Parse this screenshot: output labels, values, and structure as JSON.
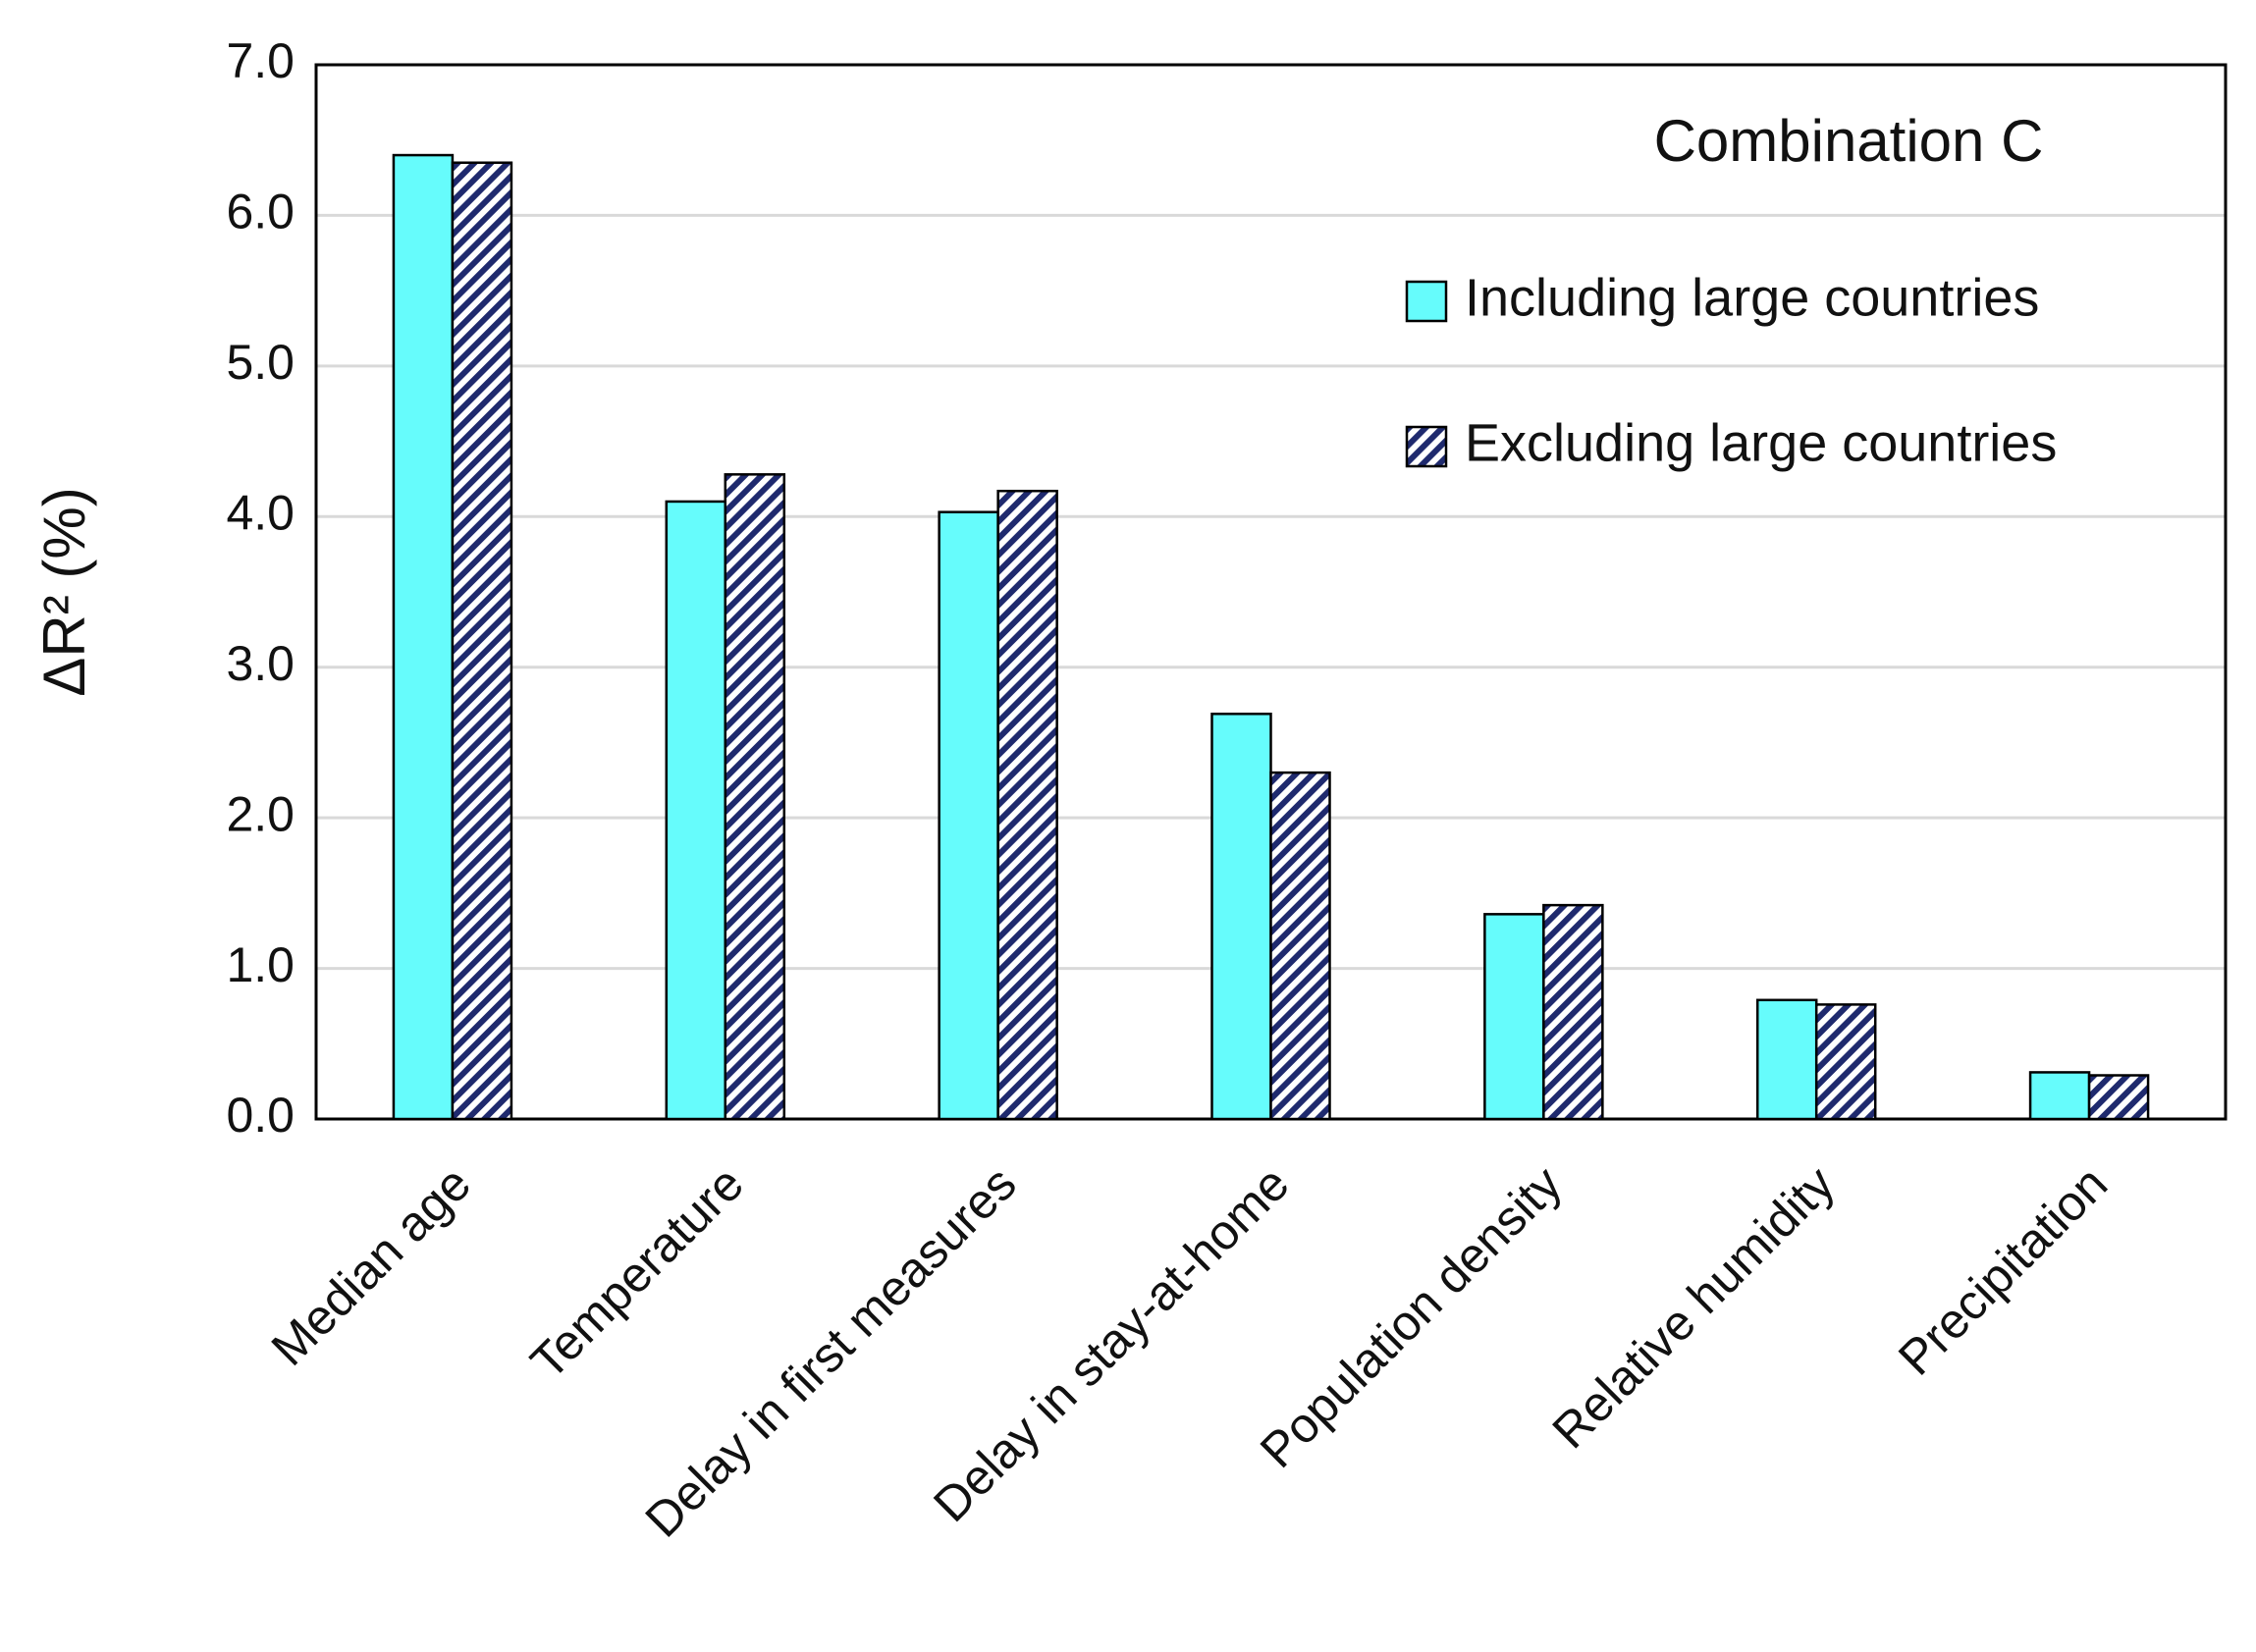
{
  "chart_data": {
    "type": "bar",
    "title": "Combination C",
    "y_label": "ΔR² (%)",
    "categories": [
      "Median age",
      "Temperature",
      "Delay in first measures",
      "Delay in stay-at-home",
      "Population density",
      "Relative humidity",
      "Precipitation"
    ],
    "series": [
      {
        "name": "Including large countries",
        "color": "#66fcfc",
        "pattern": "solid",
        "values": [
          6.4,
          4.1,
          4.03,
          2.69,
          1.36,
          0.79,
          0.31
        ]
      },
      {
        "name": "Excluding large countries",
        "color": "#1f2a6e",
        "pattern": "hatch",
        "values": [
          6.35,
          4.28,
          4.17,
          2.3,
          1.42,
          0.76,
          0.29
        ]
      }
    ],
    "ylim": [
      0,
      7
    ],
    "yticks": [
      {
        "value": 0,
        "label": "0.0"
      },
      {
        "value": 1,
        "label": "1.0"
      },
      {
        "value": 2,
        "label": "2.0"
      },
      {
        "value": 3,
        "label": "3.0"
      },
      {
        "value": 4,
        "label": "4.0"
      },
      {
        "value": 5,
        "label": "5.0"
      },
      {
        "value": 6,
        "label": "6.0"
      },
      {
        "value": 7,
        "label": "7.0"
      }
    ],
    "grid": true,
    "legend": "upper right"
  }
}
